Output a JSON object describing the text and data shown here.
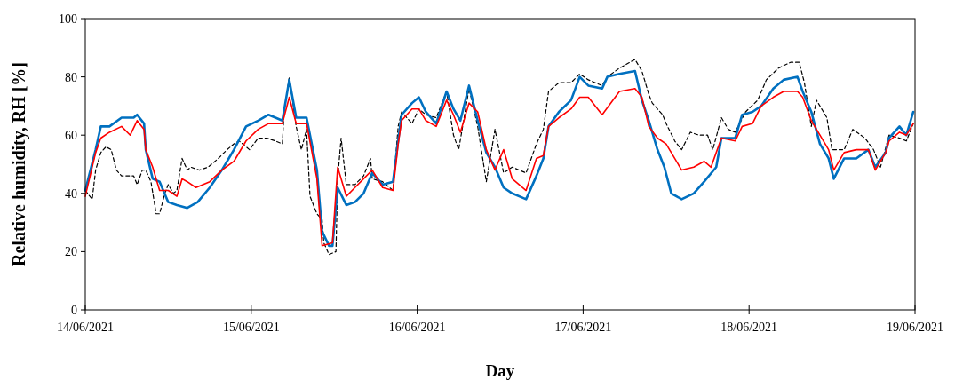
{
  "chart_data": {
    "type": "line",
    "xlabel": "Day",
    "ylabel": "Relative humidity, RH [%]",
    "xlim": [
      "2021-06-14",
      "2021-06-19"
    ],
    "ylim": [
      0,
      100
    ],
    "xticks": [
      {
        "value": "2021-06-14",
        "label": "14/06/2021"
      },
      {
        "value": "2021-06-15",
        "label": "15/06/2021"
      },
      {
        "value": "2021-06-16",
        "label": "16/06/2021"
      },
      {
        "value": "2021-06-17",
        "label": "17/06/2021"
      },
      {
        "value": "2021-06-18",
        "label": "18/06/2021"
      },
      {
        "value": "2021-06-19",
        "label": "19/06/2021"
      }
    ],
    "yticks": [
      0,
      20,
      40,
      60,
      80,
      100
    ],
    "grid": false,
    "series": [
      {
        "color": "#000000",
        "line_style": "dashed",
        "x": [
          "2021-06-14T00:00",
          "2021-06-14T01:00",
          "2021-06-14T01:30",
          "2021-06-14T02:15",
          "2021-06-14T03:00",
          "2021-06-14T03:45",
          "2021-06-14T04:30",
          "2021-06-14T05:15",
          "2021-06-14T07:00",
          "2021-06-14T07:30",
          "2021-06-14T08:15",
          "2021-06-14T08:45",
          "2021-06-14T09:30",
          "2021-06-14T10:15",
          "2021-06-14T10:45",
          "2021-06-14T11:30",
          "2021-06-14T12:00",
          "2021-06-14T12:45",
          "2021-06-14T13:15",
          "2021-06-14T14:00",
          "2021-06-14T14:45",
          "2021-06-14T15:15",
          "2021-06-14T16:30",
          "2021-06-14T17:45",
          "2021-06-14T19:15",
          "2021-06-14T20:30",
          "2021-06-14T21:30",
          "2021-06-14T22:15",
          "2021-06-14T23:45",
          "2021-06-15T01:00",
          "2021-06-15T02:15",
          "2021-06-15T03:30",
          "2021-06-15T04:30",
          "2021-06-15T04:45",
          "2021-06-15T05:30",
          "2021-06-15T06:30",
          "2021-06-15T07:15",
          "2021-06-15T08:00",
          "2021-06-15T08:30",
          "2021-06-15T09:30",
          "2021-06-15T10:15",
          "2021-06-15T10:30",
          "2021-06-15T11:15",
          "2021-06-15T12:15",
          "2021-06-15T12:30",
          "2021-06-15T13:00",
          "2021-06-15T13:45",
          "2021-06-15T15:00",
          "2021-06-15T16:15",
          "2021-06-15T17:15",
          "2021-06-15T17:30",
          "2021-06-15T19:00",
          "2021-06-15T20:30",
          "2021-06-15T21:15",
          "2021-06-15T21:45",
          "2021-06-15T23:15",
          "2021-06-16T00:15",
          "2021-06-16T01:15",
          "2021-06-16T02:45",
          "2021-06-16T04:15",
          "2021-06-16T05:15",
          "2021-06-16T06:00",
          "2021-06-16T07:30",
          "2021-06-16T08:45",
          "2021-06-16T10:00",
          "2021-06-16T11:15",
          "2021-06-16T12:30",
          "2021-06-16T13:45",
          "2021-06-16T15:45",
          "2021-06-16T17:15",
          "2021-06-16T18:15",
          "2021-06-16T19:00",
          "2021-06-16T20:30",
          "2021-06-16T22:15",
          "2021-06-16T23:30",
          "2021-06-17T00:45",
          "2021-06-17T02:45",
          "2021-06-17T03:30",
          "2021-06-17T05:15",
          "2021-06-17T07:30",
          "2021-06-17T08:30",
          "2021-06-17T09:30",
          "2021-06-17T10:00",
          "2021-06-17T11:30",
          "2021-06-17T12:00",
          "2021-06-17T13:15",
          "2021-06-17T14:15",
          "2021-06-17T15:30",
          "2021-06-17T16:45",
          "2021-06-17T18:00",
          "2021-06-17T18:45",
          "2021-06-17T20:00",
          "2021-06-17T21:00",
          "2021-06-17T22:00",
          "2021-06-17T23:30",
          "2021-06-18T01:15",
          "2021-06-18T02:30",
          "2021-06-18T04:15",
          "2021-06-18T06:00",
          "2021-06-18T07:15",
          "2021-06-18T08:00",
          "2021-06-18T09:00",
          "2021-06-18T09:45",
          "2021-06-18T11:15",
          "2021-06-18T12:00",
          "2021-06-18T13:45",
          "2021-06-18T15:00",
          "2021-06-18T16:45",
          "2021-06-18T18:00",
          "2021-06-18T19:00",
          "2021-06-18T20:15",
          "2021-06-18T21:45",
          "2021-06-18T22:45",
          "2021-06-18T23:45"
        ],
        "values": [
          41,
          38,
          48,
          54,
          56,
          55,
          48,
          46,
          46,
          43,
          48,
          48,
          44,
          33,
          33,
          40,
          43,
          40,
          41,
          52,
          48,
          49,
          48,
          49,
          52,
          55,
          57,
          58,
          55,
          59,
          59,
          58,
          57,
          68,
          80,
          63,
          55,
          62,
          39,
          33,
          31,
          23,
          19,
          20,
          45,
          59,
          43,
          43,
          46,
          52,
          45,
          44,
          41,
          63,
          68,
          64,
          69,
          67,
          66,
          75,
          60,
          55,
          76,
          63,
          44,
          62,
          47,
          49,
          47,
          57,
          62,
          75,
          78,
          78,
          81,
          79,
          77,
          80,
          83,
          86,
          82,
          74,
          71,
          67,
          64,
          58,
          55,
          61,
          60,
          60,
          55,
          66,
          62,
          61,
          68,
          72,
          79,
          83,
          85,
          85,
          78,
          63,
          72,
          66,
          55,
          55,
          62,
          59,
          55,
          49,
          60,
          59,
          58,
          64
        ]
      },
      {
        "color": "#0070c0",
        "x": [
          "2021-06-14T00:00",
          "2021-06-14T01:30",
          "2021-06-14T02:15",
          "2021-06-14T03:30",
          "2021-06-14T05:15",
          "2021-06-14T07:00",
          "2021-06-14T07:30",
          "2021-06-14T08:30",
          "2021-06-14T08:45",
          "2021-06-14T09:45",
          "2021-06-14T10:45",
          "2021-06-14T12:00",
          "2021-06-14T13:15",
          "2021-06-14T14:45",
          "2021-06-14T16:15",
          "2021-06-14T18:00",
          "2021-06-14T19:45",
          "2021-06-14T21:30",
          "2021-06-14T23:15",
          "2021-06-15T01:00",
          "2021-06-15T02:30",
          "2021-06-15T04:30",
          "2021-06-15T05:30",
          "2021-06-15T06:30",
          "2021-06-15T08:00",
          "2021-06-15T09:30",
          "2021-06-15T10:15",
          "2021-06-15T11:15",
          "2021-06-15T11:45",
          "2021-06-15T12:30",
          "2021-06-15T13:45",
          "2021-06-15T15:00",
          "2021-06-15T16:15",
          "2021-06-15T17:30",
          "2021-06-15T19:00",
          "2021-06-15T20:30",
          "2021-06-15T21:15",
          "2021-06-15T21:45",
          "2021-06-15T23:15",
          "2021-06-16T00:15",
          "2021-06-16T01:15",
          "2021-06-16T02:45",
          "2021-06-16T04:15",
          "2021-06-16T05:15",
          "2021-06-16T06:15",
          "2021-06-16T07:30",
          "2021-06-16T08:45",
          "2021-06-16T10:00",
          "2021-06-16T11:15",
          "2021-06-16T12:30",
          "2021-06-16T13:45",
          "2021-06-16T15:45",
          "2021-06-16T17:15",
          "2021-06-16T18:15",
          "2021-06-16T19:00",
          "2021-06-16T20:30",
          "2021-06-16T22:15",
          "2021-06-16T23:30",
          "2021-06-17T00:45",
          "2021-06-17T02:45",
          "2021-06-17T03:30",
          "2021-06-17T05:15",
          "2021-06-17T07:30",
          "2021-06-17T08:30",
          "2021-06-17T09:30",
          "2021-06-17T10:45",
          "2021-06-17T11:45",
          "2021-06-17T12:45",
          "2021-06-17T14:15",
          "2021-06-17T16:00",
          "2021-06-17T17:30",
          "2021-06-17T19:15",
          "2021-06-17T20:00",
          "2021-06-17T22:00",
          "2021-06-17T23:00",
          "2021-06-18T00:30",
          "2021-06-18T01:45",
          "2021-06-18T03:30",
          "2021-06-18T05:00",
          "2021-06-18T07:00",
          "2021-06-18T07:45",
          "2021-06-18T09:00",
          "2021-06-18T10:15",
          "2021-06-18T11:30",
          "2021-06-18T12:15",
          "2021-06-18T13:45",
          "2021-06-18T15:30",
          "2021-06-18T17:15",
          "2021-06-18T18:15",
          "2021-06-18T19:45",
          "2021-06-18T20:15",
          "2021-06-18T21:45",
          "2021-06-18T22:45",
          "2021-06-18T23:45"
        ],
        "values": [
          41,
          55,
          63,
          63,
          66,
          66,
          67,
          64,
          55,
          45,
          44,
          37,
          36,
          35,
          37,
          42,
          48,
          55,
          63,
          65,
          67,
          65,
          79,
          66,
          66,
          48,
          27,
          22,
          22,
          42,
          36,
          37,
          40,
          47,
          43,
          44,
          58,
          67,
          71,
          73,
          68,
          64,
          75,
          69,
          65,
          77,
          65,
          54,
          49,
          42,
          40,
          38,
          46,
          52,
          63,
          68,
          72,
          80,
          77,
          76,
          80,
          81,
          82,
          72,
          65,
          55,
          49,
          40,
          38,
          40,
          44,
          49,
          59,
          59,
          67,
          68,
          70,
          76,
          79,
          80,
          75,
          68,
          57,
          52,
          45,
          52,
          52,
          55,
          49,
          54,
          59,
          63,
          60,
          68
        ]
      },
      {
        "color": "#ff0000",
        "x": [
          "2021-06-14T00:00",
          "2021-06-14T01:30",
          "2021-06-14T02:15",
          "2021-06-14T03:30",
          "2021-06-14T05:15",
          "2021-06-14T06:30",
          "2021-06-14T07:30",
          "2021-06-14T08:30",
          "2021-06-14T08:45",
          "2021-06-14T09:45",
          "2021-06-14T10:45",
          "2021-06-14T12:00",
          "2021-06-14T13:15",
          "2021-06-14T14:00",
          "2021-06-14T14:45",
          "2021-06-14T16:00",
          "2021-06-14T18:00",
          "2021-06-14T19:45",
          "2021-06-14T21:30",
          "2021-06-14T23:15",
          "2021-06-15T01:00",
          "2021-06-15T02:30",
          "2021-06-15T04:30",
          "2021-06-15T05:30",
          "2021-06-15T06:30",
          "2021-06-15T08:00",
          "2021-06-15T09:30",
          "2021-06-15T10:15",
          "2021-06-15T11:45",
          "2021-06-15T12:30",
          "2021-06-15T13:45",
          "2021-06-15T15:00",
          "2021-06-15T16:15",
          "2021-06-15T17:30",
          "2021-06-15T19:00",
          "2021-06-15T20:30",
          "2021-06-15T21:15",
          "2021-06-15T21:45",
          "2021-06-15T23:15",
          "2021-06-16T00:15",
          "2021-06-16T01:15",
          "2021-06-16T02:45",
          "2021-06-16T04:15",
          "2021-06-16T05:15",
          "2021-06-16T06:15",
          "2021-06-16T07:30",
          "2021-06-16T08:45",
          "2021-06-16T10:00",
          "2021-06-16T11:15",
          "2021-06-16T12:30",
          "2021-06-16T13:45",
          "2021-06-16T15:45",
          "2021-06-16T17:15",
          "2021-06-16T18:15",
          "2021-06-16T19:00",
          "2021-06-16T20:30",
          "2021-06-16T22:15",
          "2021-06-16T23:30",
          "2021-06-17T00:45",
          "2021-06-17T02:45",
          "2021-06-17T05:15",
          "2021-06-17T07:30",
          "2021-06-17T08:30",
          "2021-06-17T09:30",
          "2021-06-17T10:45",
          "2021-06-17T12:00",
          "2021-06-17T12:45",
          "2021-06-17T14:15",
          "2021-06-17T16:00",
          "2021-06-17T17:30",
          "2021-06-17T18:30",
          "2021-06-17T19:15",
          "2021-06-17T20:00",
          "2021-06-17T22:00",
          "2021-06-17T23:00",
          "2021-06-18T00:30",
          "2021-06-18T01:45",
          "2021-06-18T03:30",
          "2021-06-18T05:00",
          "2021-06-18T07:00",
          "2021-06-18T07:45",
          "2021-06-18T09:00",
          "2021-06-18T10:15",
          "2021-06-18T11:30",
          "2021-06-18T12:15",
          "2021-06-18T13:45",
          "2021-06-18T15:30",
          "2021-06-18T17:15",
          "2021-06-18T18:15",
          "2021-06-18T19:45",
          "2021-06-18T20:15",
          "2021-06-18T21:45",
          "2021-06-18T22:45",
          "2021-06-18T23:45"
        ],
        "values": [
          39,
          54,
          59,
          61,
          63,
          60,
          65,
          62,
          55,
          49,
          41,
          41,
          39,
          45,
          44,
          42,
          44,
          48,
          51,
          58,
          62,
          64,
          64,
          73,
          64,
          64,
          45,
          22,
          23,
          49,
          39,
          42,
          45,
          48,
          42,
          41,
          57,
          65,
          69,
          69,
          65,
          63,
          72,
          67,
          61,
          71,
          68,
          55,
          48,
          55,
          45,
          41,
          52,
          53,
          63,
          66,
          69,
          73,
          73,
          67,
          75,
          76,
          73,
          63,
          59,
          57,
          54,
          48,
          49,
          51,
          49,
          54,
          59,
          58,
          63,
          64,
          70,
          73,
          75,
          75,
          73,
          65,
          60,
          55,
          48,
          54,
          55,
          55,
          48,
          54,
          58,
          61,
          60,
          64
        ]
      }
    ]
  }
}
